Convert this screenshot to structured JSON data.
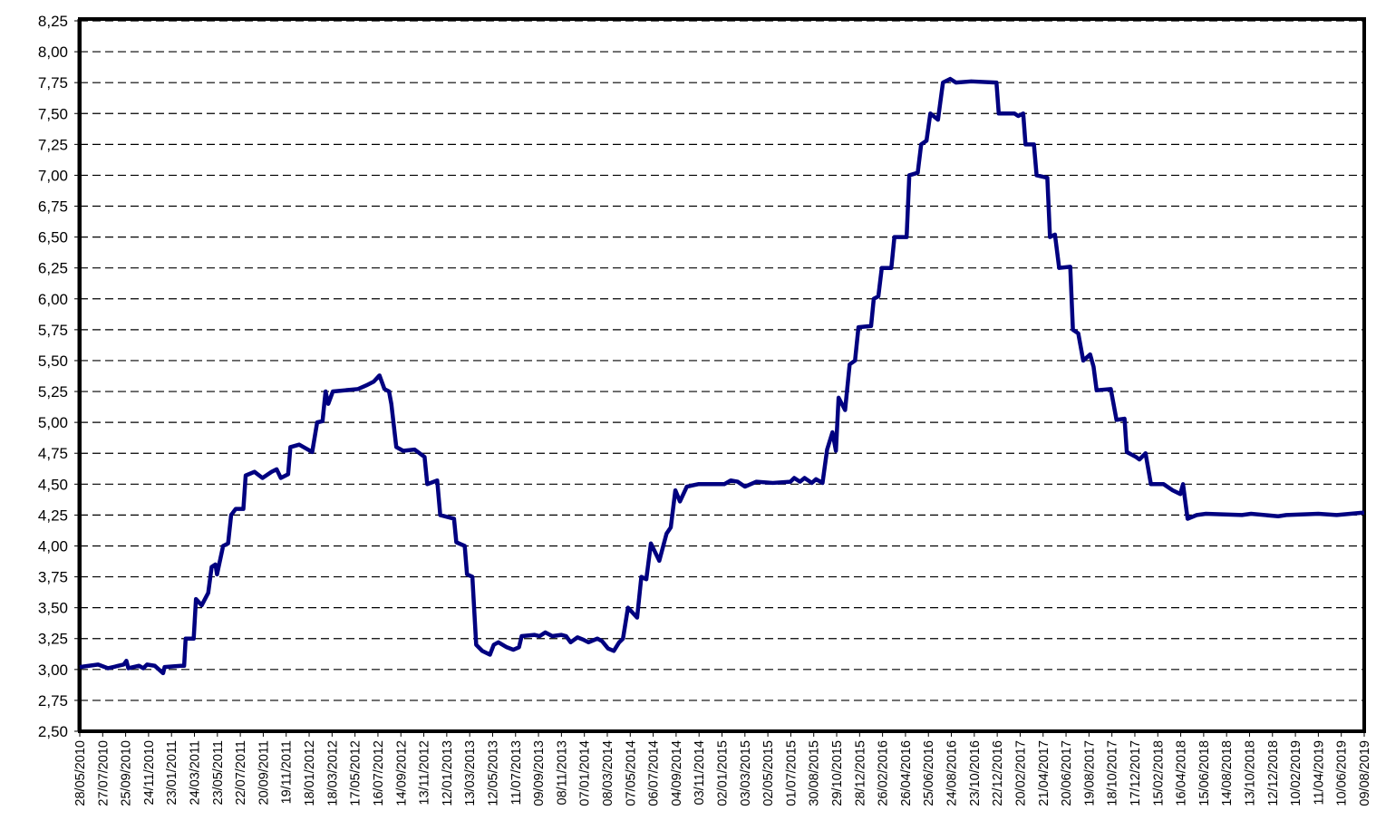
{
  "chart_data": {
    "type": "line",
    "x": [
      "28/05/2010",
      "15/07/2010",
      "10/08/2010",
      "20/09/2010",
      "27/09/2010",
      "02/10/2010",
      "30/10/2010",
      "10/11/2010",
      "20/11/2010",
      "10/12/2010",
      "01/01/2011",
      "05/01/2011",
      "17/02/2011",
      "25/02/2011",
      "01/03/2011",
      "22/03/2011",
      "28/03/2011",
      "12/04/2011",
      "29/04/2011",
      "08/05/2011",
      "18/05/2011",
      "22/05/2011",
      "07/06/2011",
      "20/06/2011",
      "28/06/2011",
      "10/07/2011",
      "30/07/2011",
      "05/08/2011",
      "28/08/2011",
      "18/09/2011",
      "12/10/2011",
      "25/10/2011",
      "05/11/2011",
      "24/11/2011",
      "30/11/2011",
      "23/12/2011",
      "26/01/2012",
      "08/02/2012",
      "22/02/2012",
      "01/03/2012",
      "08/03/2012",
      "20/03/2012",
      "25/05/2012",
      "16/06/2012",
      "05/07/2012",
      "20/07/2012",
      "02/08/2012",
      "14/08/2012",
      "20/08/2012",
      "02/09/2012",
      "20/09/2012",
      "20/10/2012",
      "15/11/2012",
      "22/11/2012",
      "18/12/2012",
      "26/12/2012",
      "31/01/2013",
      "06/02/2013",
      "28/02/2013",
      "06/03/2013",
      "20/03/2013",
      "30/03/2013",
      "15/04/2013",
      "05/05/2013",
      "15/05/2013",
      "27/05/2013",
      "18/06/2013",
      "05/07/2013",
      "20/07/2013",
      "27/07/2013",
      "30/08/2013",
      "12/09/2013",
      "27/09/2013",
      "15/10/2013",
      "08/11/2013",
      "20/11/2013",
      "02/12/2013",
      "20/12/2013",
      "05/01/2014",
      "18/01/2014",
      "10/02/2014",
      "22/02/2014",
      "10/03/2014",
      "25/03/2014",
      "08/04/2014",
      "18/04/2014",
      "01/05/2014",
      "25/05/2014",
      "05/06/2014",
      "18/06/2014",
      "30/06/2014",
      "22/07/2014",
      "10/08/2014",
      "21/08/2014",
      "02/09/2014",
      "14/09/2014",
      "02/10/2014",
      "01/11/2014",
      "08/01/2015",
      "25/01/2015",
      "12/02/2015",
      "03/03/2015",
      "02/04/2015",
      "15/05/2015",
      "30/06/2015",
      "10/07/2015",
      "25/07/2015",
      "06/08/2015",
      "25/08/2015",
      "05/09/2015",
      "22/09/2015",
      "04/10/2015",
      "18/10/2015",
      "27/10/2015",
      "03/11/2015",
      "20/11/2015",
      "02/12/2015",
      "16/12/2015",
      "25/12/2015",
      "27/01/2016",
      "03/02/2016",
      "15/02/2016",
      "24/02/2016",
      "20/03/2016",
      "28/03/2016",
      "29/04/2016",
      "06/05/2016",
      "28/05/2016",
      "06/06/2016",
      "20/06/2016",
      "30/06/2016",
      "20/07/2016",
      "02/08/2016",
      "21/08/2016",
      "05/09/2016",
      "15/10/2016",
      "20/12/2016",
      "26/12/2016",
      "05/02/2017",
      "15/02/2017",
      "28/02/2017",
      "06/03/2017",
      "28/03/2017",
      "04/04/2017",
      "02/05/2017",
      "09/05/2017",
      "22/05/2017",
      "02/06/2017",
      "01/07/2017",
      "08/07/2017",
      "22/07/2017",
      "04/08/2017",
      "22/08/2017",
      "31/08/2017",
      "08/09/2017",
      "15/10/2017",
      "30/10/2017",
      "20/11/2017",
      "26/11/2017",
      "20/12/2017",
      "29/12/2017",
      "14/01/2018",
      "28/01/2018",
      "02/03/2018",
      "26/03/2018",
      "15/04/2018",
      "22/04/2018",
      "04/05/2018",
      "28/05/2018",
      "21/06/2018",
      "23/09/2018",
      "17/10/2018",
      "27/12/2018",
      "17/01/2019",
      "11/04/2019",
      "29/05/2019",
      "09/08/2019"
    ],
    "series": [
      {
        "color": "#000080",
        "values": [
          3.02,
          3.04,
          3.01,
          3.04,
          3.07,
          3.01,
          3.03,
          3.01,
          3.04,
          3.03,
          2.97,
          3.02,
          3.03,
          3.03,
          3.25,
          3.25,
          3.57,
          3.52,
          3.62,
          3.83,
          3.85,
          3.77,
          4.0,
          4.02,
          4.25,
          4.3,
          4.3,
          4.57,
          4.6,
          4.55,
          4.6,
          4.62,
          4.55,
          4.58,
          4.8,
          4.82,
          4.76,
          5.0,
          5.01,
          5.25,
          5.15,
          5.25,
          5.27,
          5.3,
          5.33,
          5.38,
          5.27,
          5.25,
          5.15,
          4.8,
          4.77,
          4.78,
          4.72,
          4.5,
          4.53,
          4.25,
          4.22,
          4.03,
          4.0,
          3.77,
          3.75,
          3.2,
          3.15,
          3.12,
          3.2,
          3.22,
          3.18,
          3.16,
          3.18,
          3.27,
          3.28,
          3.27,
          3.3,
          3.27,
          3.28,
          3.27,
          3.22,
          3.26,
          3.24,
          3.22,
          3.25,
          3.23,
          3.17,
          3.15,
          3.22,
          3.25,
          3.5,
          3.42,
          3.75,
          3.73,
          4.02,
          3.88,
          4.1,
          4.15,
          4.45,
          4.36,
          4.48,
          4.5,
          4.5,
          4.53,
          4.52,
          4.48,
          4.52,
          4.51,
          4.52,
          4.55,
          4.52,
          4.55,
          4.51,
          4.54,
          4.51,
          4.78,
          4.92,
          4.77,
          5.2,
          5.1,
          5.47,
          5.5,
          5.77,
          5.78,
          6.0,
          6.02,
          6.25,
          6.25,
          6.5,
          6.5,
          7.0,
          7.02,
          7.25,
          7.28,
          7.5,
          7.45,
          7.75,
          7.78,
          7.75,
          7.76,
          7.75,
          7.5,
          7.5,
          7.48,
          7.5,
          7.25,
          7.25,
          7.0,
          6.98,
          6.5,
          6.52,
          6.25,
          6.26,
          5.75,
          5.72,
          5.5,
          5.55,
          5.45,
          5.26,
          5.27,
          5.02,
          5.03,
          4.76,
          4.72,
          4.7,
          4.75,
          4.5,
          4.5,
          4.45,
          4.42,
          4.5,
          4.22,
          4.25,
          4.26,
          4.25,
          4.26,
          4.24,
          4.25,
          4.26,
          4.25,
          4.27
        ]
      }
    ],
    "xlim": [
      "28/05/2010",
      "09/08/2019"
    ],
    "xticks": [
      "28/05/2010",
      "27/07/2010",
      "25/09/2010",
      "24/11/2010",
      "23/01/2011",
      "24/03/2011",
      "23/05/2011",
      "22/07/2011",
      "20/09/2011",
      "19/11/2011",
      "18/01/2012",
      "18/03/2012",
      "17/05/2012",
      "16/07/2012",
      "14/09/2012",
      "13/11/2012",
      "12/01/2013",
      "13/03/2013",
      "12/05/2013",
      "11/07/2013",
      "09/09/2013",
      "08/11/2013",
      "07/01/2014",
      "08/03/2014",
      "07/05/2014",
      "06/07/2014",
      "04/09/2014",
      "03/11/2014",
      "02/01/2015",
      "03/03/2015",
      "02/05/2015",
      "01/07/2015",
      "30/08/2015",
      "29/10/2015",
      "28/12/2015",
      "26/02/2016",
      "26/04/2016",
      "25/06/2016",
      "24/08/2016",
      "23/10/2016",
      "22/12/2016",
      "20/02/2017",
      "21/04/2017",
      "20/06/2017",
      "19/08/2017",
      "18/10/2017",
      "17/12/2017",
      "15/02/2018",
      "16/04/2018",
      "15/06/2018",
      "14/08/2018",
      "13/10/2018",
      "12/12/2018",
      "10/02/2019",
      "11/04/2019",
      "10/06/2019",
      "09/08/2019"
    ],
    "ylim": [
      2.5,
      8.25
    ],
    "yticks": [
      {
        "value": 2.5,
        "label": "2,50"
      },
      {
        "value": 2.75,
        "label": "2,75"
      },
      {
        "value": 3.0,
        "label": "3,00"
      },
      {
        "value": 3.25,
        "label": "3,25"
      },
      {
        "value": 3.5,
        "label": "3,50"
      },
      {
        "value": 3.75,
        "label": "3,75"
      },
      {
        "value": 4.0,
        "label": "4,00"
      },
      {
        "value": 4.25,
        "label": "4,25"
      },
      {
        "value": 4.5,
        "label": "4,50"
      },
      {
        "value": 4.75,
        "label": "4,75"
      },
      {
        "value": 5.0,
        "label": "5,00"
      },
      {
        "value": 5.25,
        "label": "5,25"
      },
      {
        "value": 5.5,
        "label": "5,50"
      },
      {
        "value": 5.75,
        "label": "5,75"
      },
      {
        "value": 6.0,
        "label": "6,00"
      },
      {
        "value": 6.25,
        "label": "6,25"
      },
      {
        "value": 6.5,
        "label": "6,50"
      },
      {
        "value": 6.75,
        "label": "6,75"
      },
      {
        "value": 7.0,
        "label": "7,00"
      },
      {
        "value": 7.25,
        "label": "7,25"
      },
      {
        "value": 7.5,
        "label": "7,50"
      },
      {
        "value": 7.75,
        "label": "7,75"
      },
      {
        "value": 8.0,
        "label": "8,00"
      },
      {
        "value": 8.25,
        "label": "8,25"
      }
    ],
    "grid": true
  }
}
